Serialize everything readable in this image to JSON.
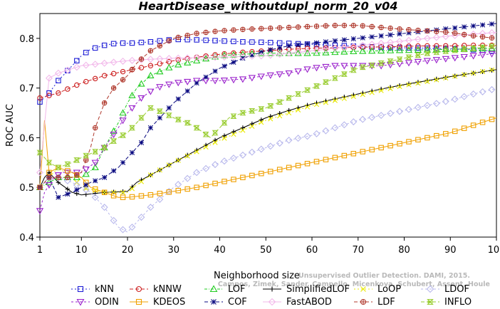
{
  "chart_data": {
    "type": "line",
    "title": "HeartDisease_withoutdupl_norm_20_v04",
    "xlabel": "Neighborhood size",
    "ylabel": "ROC AUC",
    "xlim": [
      1,
      100
    ],
    "ylim": [
      0.4,
      0.85
    ],
    "xticks": [
      1,
      10,
      20,
      30,
      40,
      50,
      60,
      70,
      80,
      90,
      100
    ],
    "xtick_labels": [
      "1",
      "10",
      "20",
      "30",
      "40",
      "50",
      "60",
      "70",
      "80",
      "90",
      "100"
    ],
    "yticks": [
      0.4,
      0.5,
      0.6,
      0.7,
      0.8
    ],
    "ytick_labels": [
      "0.4",
      "0.5",
      "0.6",
      "0.7",
      "0.8"
    ],
    "grid": false,
    "legend_position": "bottom",
    "watermark": [
      "Campos, Zimek, Sander, Campello, Micenkova, Schubert, Assent, Houle",
      "Unsupervised Outlier Detection. DAMI, 2015."
    ],
    "series": [
      {
        "name": "kNN",
        "color": "#1f1fd6",
        "marker": "square",
        "dash": "2,3",
        "points": [
          [
            1,
            0.672
          ],
          [
            3,
            0.69
          ],
          [
            5,
            0.715
          ],
          [
            8,
            0.745
          ],
          [
            10,
            0.765
          ],
          [
            12,
            0.778
          ],
          [
            15,
            0.786
          ],
          [
            18,
            0.791
          ],
          [
            20,
            0.79
          ],
          [
            25,
            0.793
          ],
          [
            30,
            0.798
          ],
          [
            35,
            0.797
          ],
          [
            40,
            0.795
          ],
          [
            45,
            0.793
          ],
          [
            50,
            0.792
          ],
          [
            55,
            0.79
          ],
          [
            60,
            0.788
          ],
          [
            65,
            0.786
          ],
          [
            70,
            0.784
          ],
          [
            75,
            0.782
          ],
          [
            80,
            0.781
          ],
          [
            85,
            0.78
          ],
          [
            90,
            0.779
          ],
          [
            95,
            0.777
          ],
          [
            100,
            0.774
          ]
        ]
      },
      {
        "name": "kNNW",
        "color": "#cc1f1f",
        "marker": "circle",
        "dash": "5,3",
        "points": [
          [
            1,
            0.68
          ],
          [
            5,
            0.69
          ],
          [
            10,
            0.71
          ],
          [
            15,
            0.725
          ],
          [
            20,
            0.735
          ],
          [
            25,
            0.745
          ],
          [
            30,
            0.755
          ],
          [
            35,
            0.762
          ],
          [
            40,
            0.768
          ],
          [
            45,
            0.772
          ],
          [
            50,
            0.775
          ],
          [
            55,
            0.778
          ],
          [
            60,
            0.78
          ],
          [
            65,
            0.781
          ],
          [
            70,
            0.782
          ],
          [
            75,
            0.783
          ],
          [
            80,
            0.784
          ],
          [
            85,
            0.785
          ],
          [
            90,
            0.785
          ],
          [
            95,
            0.786
          ],
          [
            100,
            0.786
          ]
        ]
      },
      {
        "name": "LOF",
        "color": "#22cc22",
        "marker": "triangle-up",
        "dash": "4,2,1,2",
        "points": [
          [
            1,
            0.5
          ],
          [
            5,
            0.52
          ],
          [
            10,
            0.52
          ],
          [
            13,
            0.54
          ],
          [
            15,
            0.58
          ],
          [
            18,
            0.63
          ],
          [
            20,
            0.67
          ],
          [
            22,
            0.7
          ],
          [
            25,
            0.725
          ],
          [
            30,
            0.745
          ],
          [
            35,
            0.755
          ],
          [
            40,
            0.765
          ],
          [
            45,
            0.768
          ],
          [
            50,
            0.77
          ],
          [
            55,
            0.77
          ],
          [
            60,
            0.77
          ],
          [
            65,
            0.772
          ],
          [
            70,
            0.774
          ],
          [
            75,
            0.775
          ],
          [
            80,
            0.776
          ],
          [
            85,
            0.777
          ],
          [
            90,
            0.778
          ],
          [
            95,
            0.779
          ],
          [
            100,
            0.78
          ]
        ]
      },
      {
        "name": "SimplifiedLOF",
        "color": "#000000",
        "marker": "plus",
        "dash": "",
        "points": [
          [
            1,
            0.5
          ],
          [
            2,
            0.52
          ],
          [
            3,
            0.53
          ],
          [
            5,
            0.51
          ],
          [
            8,
            0.49
          ],
          [
            10,
            0.485
          ],
          [
            15,
            0.49
          ],
          [
            20,
            0.492
          ],
          [
            22,
            0.51
          ],
          [
            25,
            0.525
          ],
          [
            30,
            0.55
          ],
          [
            35,
            0.575
          ],
          [
            40,
            0.6
          ],
          [
            45,
            0.62
          ],
          [
            50,
            0.64
          ],
          [
            55,
            0.655
          ],
          [
            60,
            0.668
          ],
          [
            65,
            0.678
          ],
          [
            70,
            0.688
          ],
          [
            75,
            0.698
          ],
          [
            80,
            0.707
          ],
          [
            85,
            0.715
          ],
          [
            90,
            0.723
          ],
          [
            95,
            0.73
          ],
          [
            100,
            0.737
          ]
        ]
      },
      {
        "name": "LoOP",
        "color": "#e8e800",
        "marker": "x",
        "dash": "2,3",
        "points": [
          [
            1,
            0.5
          ],
          [
            3,
            0.52
          ],
          [
            5,
            0.54
          ],
          [
            8,
            0.52
          ],
          [
            10,
            0.5
          ],
          [
            15,
            0.49
          ],
          [
            20,
            0.49
          ],
          [
            22,
            0.505
          ],
          [
            25,
            0.525
          ],
          [
            30,
            0.55
          ],
          [
            35,
            0.572
          ],
          [
            40,
            0.595
          ],
          [
            45,
            0.615
          ],
          [
            50,
            0.635
          ],
          [
            55,
            0.65
          ],
          [
            60,
            0.665
          ],
          [
            65,
            0.675
          ],
          [
            70,
            0.685
          ],
          [
            75,
            0.695
          ],
          [
            80,
            0.705
          ],
          [
            85,
            0.713
          ],
          [
            90,
            0.722
          ],
          [
            95,
            0.73
          ],
          [
            100,
            0.738
          ]
        ]
      },
      {
        "name": "LDOF",
        "color": "#b8b8ec",
        "marker": "diamond",
        "dash": "3,3",
        "points": [
          [
            1,
            0.5
          ],
          [
            3,
            0.52
          ],
          [
            5,
            0.52
          ],
          [
            8,
            0.51
          ],
          [
            10,
            0.5
          ],
          [
            12,
            0.49
          ],
          [
            15,
            0.46
          ],
          [
            18,
            0.42
          ],
          [
            20,
            0.41
          ],
          [
            22,
            0.43
          ],
          [
            25,
            0.46
          ],
          [
            30,
            0.5
          ],
          [
            35,
            0.53
          ],
          [
            40,
            0.55
          ],
          [
            45,
            0.565
          ],
          [
            50,
            0.58
          ],
          [
            55,
            0.595
          ],
          [
            60,
            0.605
          ],
          [
            65,
            0.62
          ],
          [
            70,
            0.635
          ],
          [
            75,
            0.645
          ],
          [
            80,
            0.655
          ],
          [
            85,
            0.665
          ],
          [
            90,
            0.675
          ],
          [
            95,
            0.688
          ],
          [
            100,
            0.699
          ]
        ]
      },
      {
        "name": "ODIN",
        "color": "#9a22cc",
        "marker": "triangle-down",
        "dash": "3,3",
        "points": [
          [
            1,
            0.453
          ],
          [
            2,
            0.49
          ],
          [
            4,
            0.52
          ],
          [
            6,
            0.53
          ],
          [
            10,
            0.53
          ],
          [
            13,
            0.55
          ],
          [
            15,
            0.58
          ],
          [
            18,
            0.62
          ],
          [
            20,
            0.65
          ],
          [
            23,
            0.68
          ],
          [
            26,
            0.7
          ],
          [
            30,
            0.71
          ],
          [
            35,
            0.715
          ],
          [
            40,
            0.715
          ],
          [
            45,
            0.718
          ],
          [
            50,
            0.725
          ],
          [
            55,
            0.73
          ],
          [
            60,
            0.74
          ],
          [
            65,
            0.745
          ],
          [
            70,
            0.745
          ],
          [
            75,
            0.745
          ],
          [
            80,
            0.75
          ],
          [
            85,
            0.755
          ],
          [
            90,
            0.76
          ],
          [
            95,
            0.765
          ],
          [
            100,
            0.77
          ]
        ]
      },
      {
        "name": "KDEOS",
        "color": "#f0a000",
        "marker": "square",
        "dash": "",
        "points": [
          [
            1,
            0.5
          ],
          [
            2,
            0.635
          ],
          [
            3,
            0.53
          ],
          [
            5,
            0.54
          ],
          [
            8,
            0.53
          ],
          [
            10,
            0.52
          ],
          [
            12,
            0.5
          ],
          [
            15,
            0.49
          ],
          [
            18,
            0.48
          ],
          [
            20,
            0.48
          ],
          [
            25,
            0.485
          ],
          [
            30,
            0.492
          ],
          [
            35,
            0.5
          ],
          [
            40,
            0.51
          ],
          [
            45,
            0.52
          ],
          [
            50,
            0.53
          ],
          [
            55,
            0.54
          ],
          [
            60,
            0.55
          ],
          [
            65,
            0.56
          ],
          [
            70,
            0.57
          ],
          [
            75,
            0.58
          ],
          [
            80,
            0.59
          ],
          [
            85,
            0.6
          ],
          [
            90,
            0.61
          ],
          [
            95,
            0.625
          ],
          [
            100,
            0.64
          ]
        ]
      },
      {
        "name": "COF",
        "color": "#0a0a80",
        "marker": "star",
        "dash": "5,3",
        "points": [
          [
            1,
            0.5
          ],
          [
            3,
            0.52
          ],
          [
            5,
            0.48
          ],
          [
            8,
            0.49
          ],
          [
            10,
            0.5
          ],
          [
            12,
            0.51
          ],
          [
            15,
            0.52
          ],
          [
            18,
            0.54
          ],
          [
            20,
            0.56
          ],
          [
            23,
            0.59
          ],
          [
            25,
            0.62
          ],
          [
            28,
            0.65
          ],
          [
            30,
            0.67
          ],
          [
            35,
            0.71
          ],
          [
            40,
            0.74
          ],
          [
            45,
            0.76
          ],
          [
            50,
            0.775
          ],
          [
            55,
            0.785
          ],
          [
            60,
            0.79
          ],
          [
            65,
            0.795
          ],
          [
            70,
            0.8
          ],
          [
            75,
            0.805
          ],
          [
            80,
            0.81
          ],
          [
            85,
            0.815
          ],
          [
            90,
            0.82
          ],
          [
            95,
            0.825
          ],
          [
            100,
            0.83
          ]
        ]
      },
      {
        "name": "FastABOD",
        "color": "#f2b8ea",
        "marker": "diamond",
        "dash": "",
        "points": [
          [
            1,
            0.53
          ],
          [
            3,
            0.72
          ],
          [
            5,
            0.73
          ],
          [
            10,
            0.745
          ],
          [
            15,
            0.75
          ],
          [
            20,
            0.755
          ],
          [
            25,
            0.758
          ],
          [
            30,
            0.76
          ],
          [
            40,
            0.762
          ],
          [
            50,
            0.765
          ],
          [
            60,
            0.775
          ],
          [
            70,
            0.785
          ],
          [
            80,
            0.795
          ],
          [
            90,
            0.805
          ],
          [
            100,
            0.812
          ]
        ]
      },
      {
        "name": "LDF",
        "color": "#b03a2e",
        "marker": "circle-plus",
        "dash": "5,3",
        "points": [
          [
            1,
            0.5
          ],
          [
            3,
            0.52
          ],
          [
            5,
            0.52
          ],
          [
            8,
            0.52
          ],
          [
            10,
            0.53
          ],
          [
            12,
            0.58
          ],
          [
            13,
            0.62
          ],
          [
            15,
            0.67
          ],
          [
            17,
            0.7
          ],
          [
            20,
            0.725
          ],
          [
            22,
            0.75
          ],
          [
            25,
            0.775
          ],
          [
            28,
            0.79
          ],
          [
            30,
            0.8
          ],
          [
            35,
            0.81
          ],
          [
            40,
            0.815
          ],
          [
            45,
            0.818
          ],
          [
            50,
            0.82
          ],
          [
            55,
            0.822
          ],
          [
            60,
            0.824
          ],
          [
            65,
            0.826
          ],
          [
            70,
            0.826
          ],
          [
            75,
            0.822
          ],
          [
            80,
            0.818
          ],
          [
            85,
            0.815
          ],
          [
            90,
            0.812
          ],
          [
            95,
            0.805
          ],
          [
            100,
            0.8
          ]
        ]
      },
      {
        "name": "INFLO",
        "color": "#9acd32",
        "marker": "hourglass",
        "dash": "5,3",
        "points": [
          [
            1,
            0.57
          ],
          [
            3,
            0.55
          ],
          [
            5,
            0.54
          ],
          [
            8,
            0.55
          ],
          [
            10,
            0.56
          ],
          [
            15,
            0.58
          ],
          [
            18,
            0.6
          ],
          [
            20,
            0.61
          ],
          [
            22,
            0.63
          ],
          [
            25,
            0.66
          ],
          [
            28,
            0.65
          ],
          [
            30,
            0.64
          ],
          [
            33,
            0.63
          ],
          [
            35,
            0.62
          ],
          [
            38,
            0.6
          ],
          [
            40,
            0.62
          ],
          [
            42,
            0.64
          ],
          [
            45,
            0.65
          ],
          [
            50,
            0.66
          ],
          [
            55,
            0.68
          ],
          [
            60,
            0.7
          ],
          [
            65,
            0.72
          ],
          [
            70,
            0.74
          ],
          [
            75,
            0.75
          ],
          [
            80,
            0.76
          ],
          [
            85,
            0.77
          ],
          [
            90,
            0.775
          ],
          [
            95,
            0.78
          ],
          [
            100,
            0.785
          ]
        ]
      }
    ]
  }
}
